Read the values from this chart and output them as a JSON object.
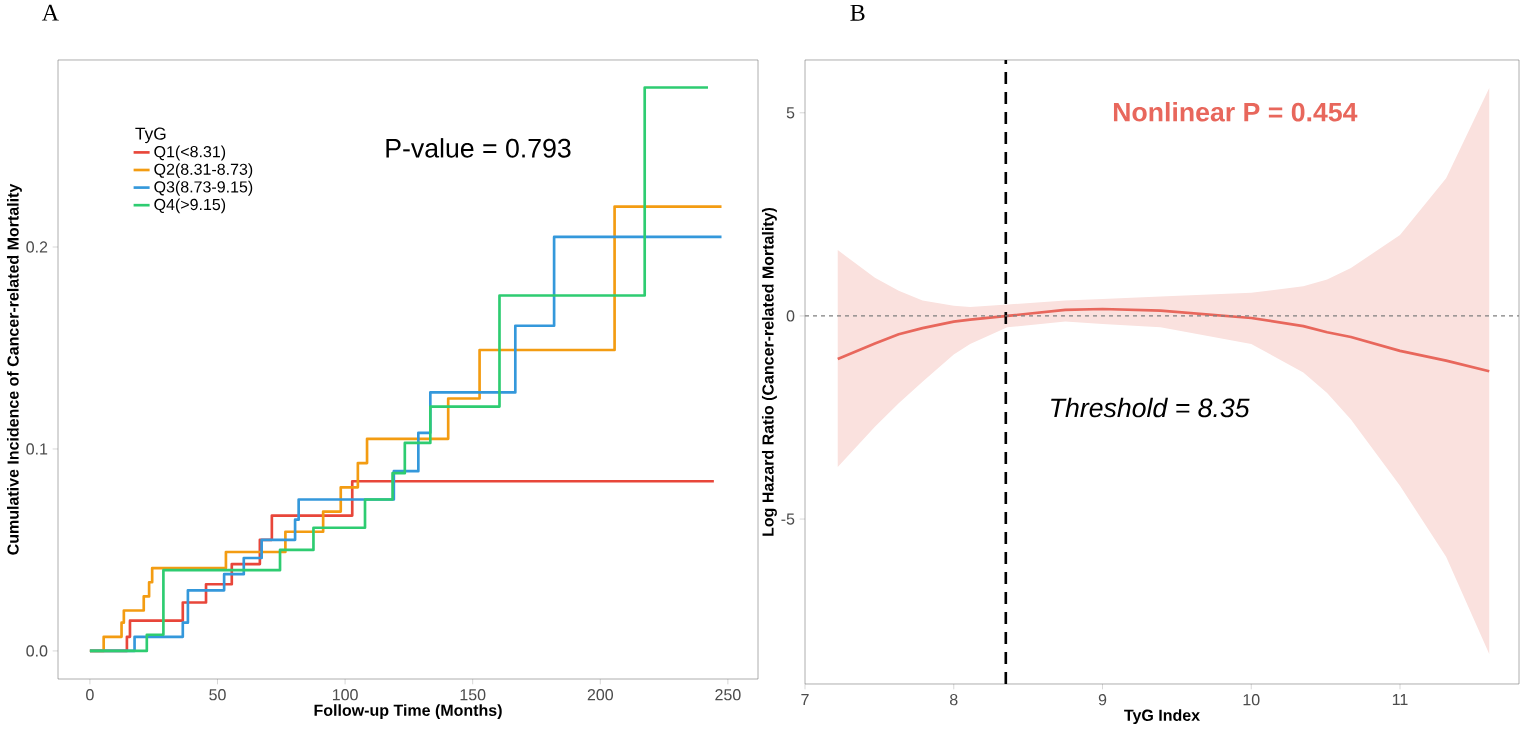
{
  "chart_data": [
    {
      "type": "step",
      "title": "A",
      "xlabel": "Follow-up Time (Months)",
      "ylabel": "Cumulative Incidence of Cancer-related Mortality",
      "legend_title": "TyG",
      "legend": "top left",
      "annotations": [
        "P-value = 0.793"
      ],
      "xlim": [
        -12.5,
        261.8
      ],
      "ylim": [
        -0.0139,
        0.2926
      ],
      "xticks": [
        0,
        50,
        100,
        150,
        200,
        250
      ],
      "yticks": [
        {
          "value": 0,
          "label": "0.0"
        },
        {
          "value": 0.1,
          "label": "0.1"
        },
        {
          "value": 0.2,
          "label": "0.2"
        }
      ],
      "grid": false,
      "series": [
        {
          "name": "Q1(<8.31)",
          "color": "#e8463a",
          "x": [
            0,
            14.5,
            15.7,
            36.4,
            45.5,
            55.6,
            66.6,
            71.3,
            102.8,
            244.5
          ],
          "values": [
            0,
            0.007,
            0.015,
            0.024,
            0.033,
            0.043,
            0.055,
            0.067,
            0.084,
            0.084
          ]
        },
        {
          "name": "Q2(8.31-8.73)",
          "color": "#f39c12",
          "x": [
            0,
            5.4,
            12.4,
            13.3,
            21.1,
            23.2,
            24.4,
            53.3,
            76.6,
            91.4,
            98.3,
            105,
            108.6,
            140.4,
            152.7,
            205.6,
            247.5
          ],
          "values": [
            0,
            0.007,
            0.014,
            0.02,
            0.027,
            0.034,
            0.041,
            0.049,
            0.059,
            0.069,
            0.081,
            0.093,
            0.105,
            0.125,
            0.149,
            0.22,
            0.22
          ]
        },
        {
          "name": "Q3(8.73-9.15)",
          "color": "#3498db",
          "x": [
            0,
            17.5,
            36.4,
            38.4,
            52.6,
            60.3,
            67.3,
            80.4,
            81.8,
            119.1,
            128.7,
            133.4,
            166.7,
            181.9,
            247.5
          ],
          "values": [
            0,
            0.007,
            0.014,
            0.03,
            0.038,
            0.046,
            0.055,
            0.065,
            0.075,
            0.089,
            0.108,
            0.128,
            0.161,
            0.205,
            0.205
          ]
        },
        {
          "name": "Q4(>9.15)",
          "color": "#2ecc71",
          "x": [
            0,
            22.3,
            28.8,
            74.5,
            87.6,
            107.8,
            118.6,
            123.4,
            133.4,
            160.5,
            217.4,
            242.2
          ],
          "values": [
            0,
            0.008,
            0.04,
            0.05,
            0.061,
            0.075,
            0.088,
            0.103,
            0.121,
            0.176,
            0.279,
            0.279
          ]
        }
      ]
    },
    {
      "type": "line",
      "title": "B",
      "xlabel": "TyG Index",
      "ylabel": "Log Hazard Ratio (Cancer-related Mortality)",
      "annotations": [
        "Nonlinear P = 0.454",
        "Threshold = 8.35"
      ],
      "xlim": [
        7,
        11.8
      ],
      "ylim": [
        -9.06,
        6.3
      ],
      "xticks": [
        7,
        8,
        9,
        10,
        11
      ],
      "yticks": [
        -5,
        0,
        5
      ],
      "grid": false,
      "ref_lines": [
        {
          "axis": "x",
          "value": 8.35,
          "color": "#000000",
          "line_style": "dashed"
        },
        {
          "axis": "y",
          "value": 0,
          "color": "#7f7f7f",
          "line_style": "dashed"
        }
      ],
      "series": [
        {
          "color": "#e8675c",
          "x": [
            7.22,
            7.47,
            7.63,
            7.79,
            8.0,
            8.11,
            8.36,
            8.75,
            9.0,
            9.39,
            10.0,
            10.35,
            10.51,
            10.67,
            11.0,
            11.31,
            11.6
          ],
          "values": [
            -1.06,
            -0.68,
            -0.45,
            -0.3,
            -0.14,
            -0.09,
            0,
            0.15,
            0.17,
            0.13,
            -0.05,
            -0.25,
            -0.4,
            -0.52,
            -0.86,
            -1.1,
            -1.36
          ],
          "upper": [
            1.62,
            0.94,
            0.62,
            0.38,
            0.25,
            0.22,
            0.28,
            0.38,
            0.42,
            0.48,
            0.57,
            0.73,
            0.9,
            1.18,
            1.99,
            3.39,
            5.61
          ],
          "lower": [
            -3.72,
            -2.73,
            -2.15,
            -1.62,
            -0.95,
            -0.69,
            -0.28,
            -0.14,
            -0.2,
            -0.28,
            -0.69,
            -1.39,
            -1.9,
            -2.55,
            -4.18,
            -5.93,
            -8.32
          ]
        }
      ]
    }
  ]
}
